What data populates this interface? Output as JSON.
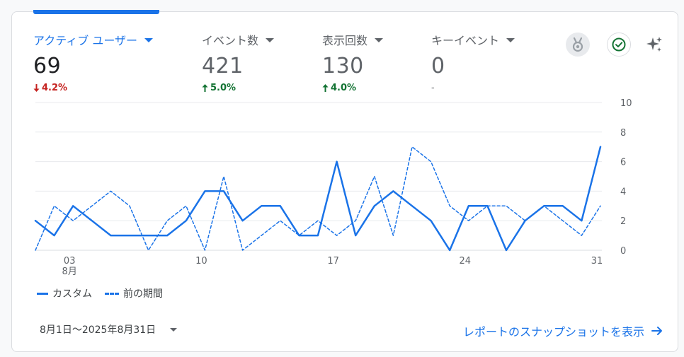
{
  "metrics": [
    {
      "label": "アクティブ ユーザー",
      "value": "69",
      "delta": "4.2%",
      "direction": "down"
    },
    {
      "label": "イベント数",
      "value": "421",
      "delta": "5.0%",
      "direction": "up"
    },
    {
      "label": "表示回数",
      "value": "130",
      "delta": "4.0%",
      "direction": "up"
    },
    {
      "label": "キーイベント",
      "value": "0",
      "delta": "-",
      "direction": "none"
    }
  ],
  "icons": {
    "insights": "medal-icon",
    "status": "check-circle-icon",
    "ai": "sparkle-icon"
  },
  "colors": {
    "accent": "#1a73e8",
    "down": "#c5221f",
    "up": "#137333"
  },
  "legend": {
    "current": "カスタム",
    "previous": "前の期間"
  },
  "footer": {
    "date_range": "8月1日～2025年8月31日",
    "report_link": "レポートのスナップショットを表示"
  },
  "chart_data": {
    "type": "line",
    "x": [
      1,
      2,
      3,
      4,
      5,
      6,
      7,
      8,
      9,
      10,
      11,
      12,
      13,
      14,
      15,
      16,
      17,
      18,
      19,
      20,
      21,
      22,
      23,
      24,
      25,
      26,
      27,
      28,
      29,
      30,
      31
    ],
    "x_tick_labels": [
      "03",
      "10",
      "17",
      "24",
      "31"
    ],
    "x_tick_days": [
      3,
      10,
      17,
      24,
      31
    ],
    "x_sublabel": "8月",
    "y_ticks": [
      0,
      2,
      4,
      6,
      8,
      10
    ],
    "ylim": [
      0,
      10
    ],
    "grid": true,
    "y_axis_side": "right",
    "series": [
      {
        "name": "カスタム",
        "style": "solid",
        "values": [
          2,
          1,
          3,
          2,
          1,
          1,
          1,
          1,
          2,
          4,
          4,
          2,
          3,
          3,
          1,
          1,
          6,
          1,
          3,
          4,
          3,
          2,
          0,
          3,
          3,
          0,
          2,
          3,
          3,
          2,
          7
        ]
      },
      {
        "name": "前の期間",
        "style": "dashed",
        "values": [
          0,
          3,
          2,
          3,
          4,
          3,
          0,
          2,
          3,
          0,
          5,
          0,
          1,
          2,
          1,
          2,
          1,
          2,
          5,
          1,
          7,
          6,
          3,
          2,
          3,
          3,
          2,
          3,
          2,
          1,
          3
        ]
      }
    ]
  }
}
